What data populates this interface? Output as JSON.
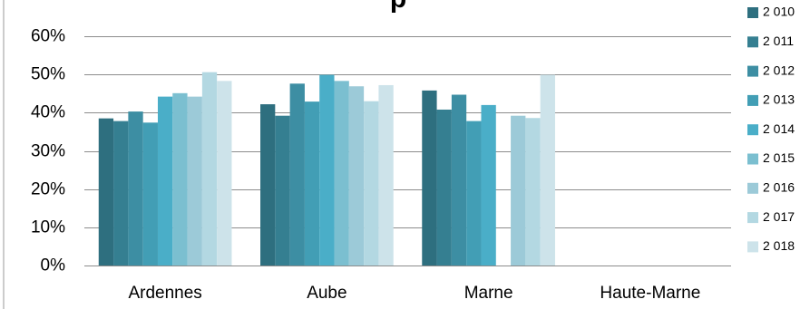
{
  "chart_data": {
    "type": "bar",
    "title": "p",
    "categories": [
      "Ardennes",
      "Aube",
      "Marne",
      "Haute-Marne"
    ],
    "y_ticks": [
      "0%",
      "10%",
      "20%",
      "30%",
      "40%",
      "50%",
      "60%"
    ],
    "ylim": [
      0,
      60
    ],
    "y_unit": "%",
    "grid": true,
    "legend_position": "right",
    "series": [
      {
        "name": "2 010",
        "color": "#2e6f7f",
        "values": [
          38.5,
          42.2,
          45.8,
          null
        ]
      },
      {
        "name": "2 011",
        "color": "#357f91",
        "values": [
          37.8,
          39.2,
          40.8,
          null
        ]
      },
      {
        "name": "2 012",
        "color": "#3d8ea3",
        "values": [
          40.3,
          47.6,
          44.7,
          null
        ]
      },
      {
        "name": "2 013",
        "color": "#429eb5",
        "values": [
          37.4,
          42.9,
          37.8,
          null
        ]
      },
      {
        "name": "2 014",
        "color": "#4aaec8",
        "values": [
          44.2,
          49.9,
          42.0,
          null
        ]
      },
      {
        "name": "2 015",
        "color": "#7bbfd0",
        "values": [
          45.1,
          48.3,
          null,
          null
        ]
      },
      {
        "name": "2 016",
        "color": "#9ccad8",
        "values": [
          44.2,
          46.9,
          39.2,
          null
        ]
      },
      {
        "name": "2 017",
        "color": "#b3d8e2",
        "values": [
          50.6,
          43.0,
          38.6,
          null
        ]
      },
      {
        "name": "2 018",
        "color": "#cde3ea",
        "values": [
          48.3,
          47.2,
          49.9,
          null
        ]
      }
    ]
  }
}
